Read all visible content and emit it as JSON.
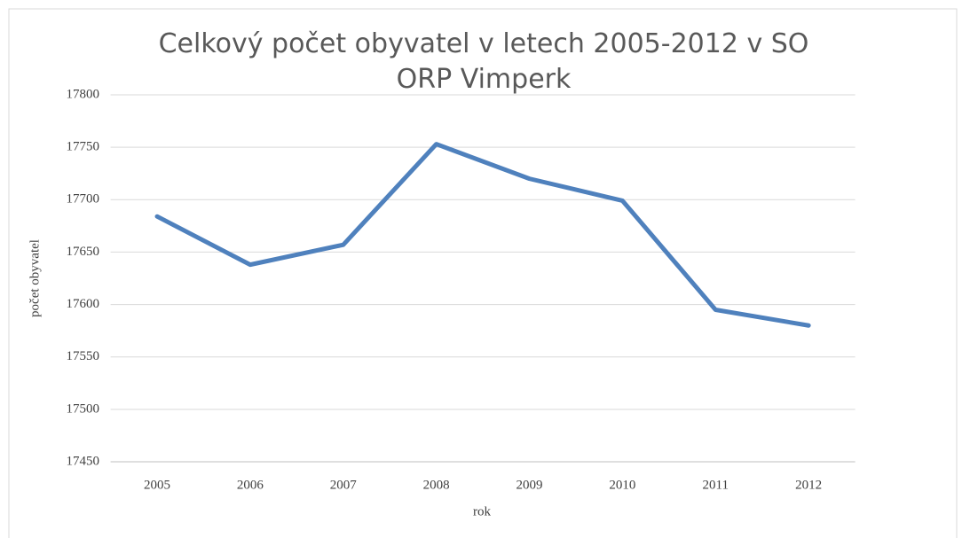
{
  "chart_data": {
    "type": "line",
    "title": "Celkový počet obyvatel v letech 2005-2012 v SO ORP Vimperk",
    "x_label": "rok",
    "y_label": "počet obyvatel",
    "categories": [
      "2005",
      "2006",
      "2007",
      "2008",
      "2009",
      "2010",
      "2011",
      "2012"
    ],
    "series": [
      {
        "name": "počet obyvatel",
        "color": "#4f81bd",
        "values": [
          17684,
          17638,
          17657,
          17753,
          17720,
          17699,
          17595,
          17580
        ]
      }
    ],
    "ylim": [
      17450,
      17800
    ],
    "yticks": [
      17450,
      17500,
      17550,
      17600,
      17650,
      17700,
      17750,
      17800
    ],
    "grid": true
  }
}
